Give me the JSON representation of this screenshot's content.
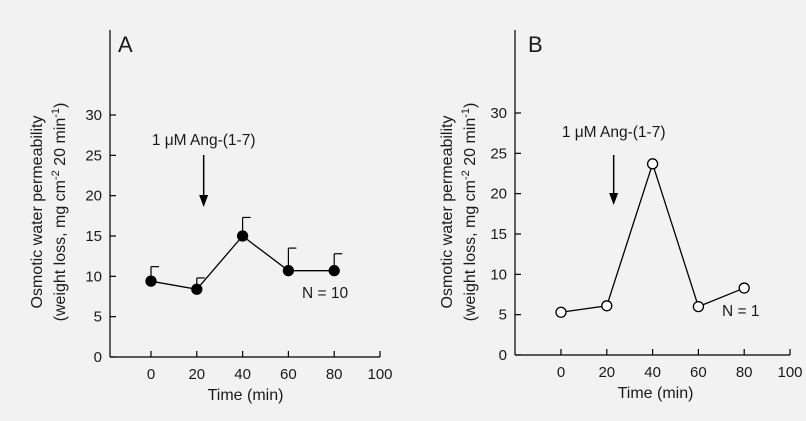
{
  "chart_data": [
    {
      "type": "line",
      "panel": "A",
      "ylabel_line1": "Osmotic water permeability",
      "ylabel_line2": "(weight loss, mg cm-2 20 min-1)",
      "xlabel": "Time (min)",
      "x_ticks": [
        "0",
        "20",
        "40",
        "60",
        "80",
        "100"
      ],
      "y_ticks": [
        "0",
        "5",
        "10",
        "15",
        "20",
        "25",
        "30"
      ],
      "xlim": [
        -20,
        100
      ],
      "ylim": [
        0,
        30
      ],
      "annotation": "1 μM Ang-(1-7)",
      "annotation_x": 23,
      "n_label": "N = 10",
      "marker": "filled-circle",
      "x": [
        0,
        20,
        40,
        60,
        80
      ],
      "y": [
        9.4,
        8.4,
        15.0,
        10.7,
        10.7
      ],
      "error_upper": [
        1.8,
        1.4,
        2.3,
        2.8,
        2.1
      ]
    },
    {
      "type": "line",
      "panel": "B",
      "ylabel_line1": "Osmotic water permeability",
      "ylabel_line2": "(weight loss, mg cm-2 20 min-1)",
      "xlabel": "Time (min)",
      "x_ticks": [
        "0",
        "20",
        "40",
        "60",
        "80",
        "100"
      ],
      "y_ticks": [
        "0",
        "5",
        "10",
        "15",
        "20",
        "25",
        "30"
      ],
      "xlim": [
        -20,
        100
      ],
      "ylim": [
        0,
        30
      ],
      "annotation": "1 μM Ang-(1-7)",
      "annotation_x": 23,
      "n_label": "N = 1",
      "marker": "open-circle",
      "x": [
        0,
        20,
        40,
        60,
        80
      ],
      "y": [
        5.3,
        6.1,
        23.7,
        6.0,
        8.3
      ],
      "error_upper": []
    }
  ]
}
